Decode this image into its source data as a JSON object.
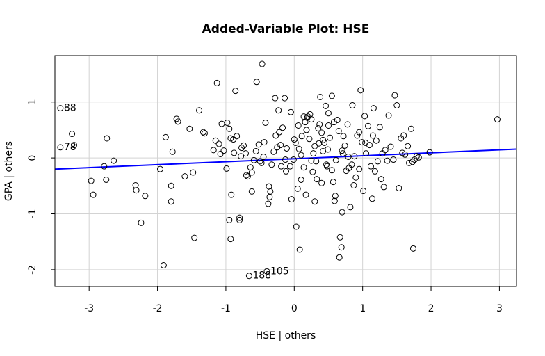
{
  "chart_data": {
    "type": "scatter",
    "title": "Added-Variable Plot: HSE",
    "xlabel": "HSE | others",
    "ylabel": "GPA | others",
    "xlim": [
      -3.5,
      3.25
    ],
    "ylim": [
      -2.3,
      1.83
    ],
    "xticks": [
      "-3",
      "-2",
      "-1",
      "0",
      "1",
      "2",
      "3"
    ],
    "yticks": [
      "-2",
      "-1",
      "0",
      "1"
    ],
    "grid": true,
    "colors": {
      "line": "#0000ff",
      "points": "#000000",
      "grid": "#d3d3d3"
    },
    "regression_line": {
      "intercept": -0.015,
      "slope": 0.053
    },
    "labeled_points": [
      {
        "x": -3.42,
        "y": 0.89,
        "label": "88"
      },
      {
        "x": -3.42,
        "y": 0.19,
        "label": "78"
      },
      {
        "x": -0.66,
        "y": -2.11,
        "label": "188"
      },
      {
        "x": -0.4,
        "y": -2.03,
        "label": "105"
      }
    ],
    "points": [
      [
        -3.25,
        0.43
      ],
      [
        -3.22,
        0.23
      ],
      [
        -2.97,
        -0.41
      ],
      [
        -2.94,
        -0.66
      ],
      [
        -2.78,
        -0.15
      ],
      [
        -2.64,
        -0.05
      ],
      [
        -2.74,
        0.35
      ],
      [
        -2.75,
        -0.39
      ],
      [
        -2.32,
        -0.49
      ],
      [
        -2.31,
        -0.58
      ],
      [
        -2.24,
        -1.16
      ],
      [
        -2.18,
        -0.68
      ],
      [
        -1.96,
        -0.2
      ],
      [
        -1.91,
        -1.92
      ],
      [
        -1.88,
        0.37
      ],
      [
        -1.8,
        -0.5
      ],
      [
        -1.8,
        -0.78
      ],
      [
        -1.78,
        0.11
      ],
      [
        -1.72,
        0.7
      ],
      [
        -1.7,
        0.65
      ],
      [
        -1.6,
        -0.33
      ],
      [
        -1.53,
        0.52
      ],
      [
        -1.48,
        -0.26
      ],
      [
        -1.46,
        -1.43
      ],
      [
        -1.39,
        0.85
      ],
      [
        -1.33,
        0.46
      ],
      [
        -1.31,
        0.44
      ],
      [
        -1.18,
        0.14
      ],
      [
        -1.15,
        0.31
      ],
      [
        -1.13,
        1.34
      ],
      [
        -1.1,
        0.25
      ],
      [
        -1.08,
        0.07
      ],
      [
        -1.06,
        0.61
      ],
      [
        -1.03,
        0.13
      ],
      [
        -0.99,
        -0.19
      ],
      [
        -0.98,
        0.63
      ],
      [
        -0.95,
        0.52
      ],
      [
        -0.93,
        0.35
      ],
      [
        -0.92,
        -0.66
      ],
      [
        -0.95,
        -1.11
      ],
      [
        -0.93,
        -1.45
      ],
      [
        -0.89,
        0.33
      ],
      [
        -0.88,
        0.09
      ],
      [
        -0.86,
        1.2
      ],
      [
        -0.84,
        0.39
      ],
      [
        -0.8,
        -1.07
      ],
      [
        -0.8,
        -1.11
      ],
      [
        -0.78,
        0.03
      ],
      [
        -0.77,
        0.18
      ],
      [
        -0.74,
        0.22
      ],
      [
        -0.71,
        0.08
      ],
      [
        -0.7,
        -0.31
      ],
      [
        -0.68,
        -0.33
      ],
      [
        -0.64,
        -0.17
      ],
      [
        -0.62,
        -0.26
      ],
      [
        -0.59,
        -0.04
      ],
      [
        -0.56,
        0.12
      ],
      [
        -0.55,
        1.36
      ],
      [
        -0.52,
        0.24
      ],
      [
        -0.5,
        -0.06
      ],
      [
        -0.47,
        1.68
      ],
      [
        -0.45,
        0.02
      ],
      [
        -0.44,
        0.28
      ],
      [
        -0.42,
        0.63
      ],
      [
        -0.38,
        -0.82
      ],
      [
        -0.37,
        -0.51
      ],
      [
        -0.36,
        -0.7
      ],
      [
        -0.35,
        -0.6
      ],
      [
        -0.33,
        -0.12
      ],
      [
        -0.3,
        0.11
      ],
      [
        -0.28,
        1.07
      ],
      [
        -0.25,
        0.19
      ],
      [
        -0.23,
        0.85
      ],
      [
        -0.2,
        0.23
      ],
      [
        -0.19,
        -0.15
      ],
      [
        -0.17,
        0.54
      ],
      [
        -0.14,
        1.07
      ],
      [
        -0.13,
        -0.03
      ],
      [
        -0.11,
        0.17
      ],
      [
        -0.06,
        -0.15
      ],
      [
        -0.04,
        -0.74
      ],
      [
        -0.01,
        -0.03
      ],
      [
        0.0,
        0.33
      ],
      [
        0.02,
        0.27
      ],
      [
        0.03,
        -1.23
      ],
      [
        0.05,
        -0.55
      ],
      [
        0.06,
        0.58
      ],
      [
        0.08,
        -1.64
      ],
      [
        0.1,
        0.05
      ],
      [
        0.11,
        0.39
      ],
      [
        0.14,
        -0.17
      ],
      [
        0.16,
        0.64
      ],
      [
        0.17,
        -0.66
      ],
      [
        0.19,
        0.72
      ],
      [
        0.2,
        0.74
      ],
      [
        0.22,
        0.34
      ],
      [
        0.23,
        0.78
      ],
      [
        0.25,
        0.69
      ],
      [
        0.27,
        -0.25
      ],
      [
        0.28,
        0.08
      ],
      [
        0.3,
        0.21
      ],
      [
        0.32,
        -0.06
      ],
      [
        0.33,
        -0.38
      ],
      [
        0.35,
        0.53
      ],
      [
        0.37,
        0.6
      ],
      [
        0.38,
        1.09
      ],
      [
        0.4,
        -0.45
      ],
      [
        0.42,
        0.32
      ],
      [
        0.44,
        0.27
      ],
      [
        0.46,
        0.93
      ],
      [
        0.47,
        -0.12
      ],
      [
        0.49,
        0.15
      ],
      [
        0.5,
        0.58
      ],
      [
        0.52,
        0.36
      ],
      [
        0.55,
        -0.22
      ],
      [
        0.57,
        -0.43
      ],
      [
        0.59,
        -0.77
      ],
      [
        0.61,
        -0.04
      ],
      [
        0.63,
        0.68
      ],
      [
        0.65,
        0.48
      ],
      [
        0.67,
        -1.42
      ],
      [
        0.69,
        -1.6
      ],
      [
        0.7,
        -0.97
      ],
      [
        0.72,
        0.39
      ],
      [
        0.74,
        0.22
      ],
      [
        0.76,
        -0.23
      ],
      [
        0.78,
        0.6
      ],
      [
        0.8,
        -0.18
      ],
      [
        0.82,
        -0.88
      ],
      [
        0.85,
        0.94
      ],
      [
        0.87,
        -0.49
      ],
      [
        0.88,
        0.03
      ],
      [
        0.9,
        -0.35
      ],
      [
        0.92,
        0.4
      ],
      [
        0.95,
        -0.2
      ],
      [
        0.97,
        1.21
      ],
      [
        0.99,
        0.28
      ],
      [
        1.01,
        -0.59
      ],
      [
        1.03,
        0.75
      ],
      [
        1.05,
        0.08
      ],
      [
        1.08,
        0.57
      ],
      [
        1.1,
        0.23
      ],
      [
        1.12,
        -0.15
      ],
      [
        1.14,
        -0.73
      ],
      [
        1.16,
        0.89
      ],
      [
        1.18,
        -0.24
      ],
      [
        1.2,
        0.31
      ],
      [
        1.22,
        -0.06
      ],
      [
        1.25,
        0.55
      ],
      [
        1.27,
        -0.38
      ],
      [
        1.29,
        0.08
      ],
      [
        1.31,
        -0.52
      ],
      [
        1.33,
        0.14
      ],
      [
        1.36,
        -0.05
      ],
      [
        1.38,
        0.76
      ],
      [
        1.41,
        0.2
      ],
      [
        1.45,
        -0.03
      ],
      [
        1.47,
        1.12
      ],
      [
        1.5,
        0.94
      ],
      [
        1.53,
        -0.54
      ],
      [
        1.56,
        0.35
      ],
      [
        1.58,
        0.09
      ],
      [
        1.6,
        0.4
      ],
      [
        1.62,
        0.06
      ],
      [
        1.66,
        0.21
      ],
      [
        1.68,
        -0.09
      ],
      [
        1.71,
        0.52
      ],
      [
        1.73,
        -0.07
      ],
      [
        1.74,
        -1.62
      ],
      [
        1.76,
        -0.03
      ],
      [
        1.79,
        0.03
      ],
      [
        1.82,
        0.01
      ],
      [
        1.98,
        0.1
      ],
      [
        2.97,
        0.69
      ],
      [
        0.42,
        0.12
      ],
      [
        0.55,
        1.11
      ],
      [
        0.6,
        -0.68
      ],
      [
        0.3,
        -0.78
      ],
      [
        0.18,
        0.5
      ],
      [
        0.1,
        -0.39
      ],
      [
        -0.22,
        0.46
      ],
      [
        -0.05,
        0.82
      ],
      [
        0.25,
        -0.05
      ],
      [
        0.36,
        0.26
      ],
      [
        0.48,
        -0.15
      ],
      [
        0.58,
        0.64
      ],
      [
        0.66,
        -1.78
      ],
      [
        0.71,
        0.08
      ],
      [
        0.84,
        -0.12
      ],
      [
        0.95,
        0.46
      ],
      [
        1.04,
        0.27
      ],
      [
        1.15,
        0.4
      ],
      [
        -0.62,
        -0.6
      ],
      [
        -0.48,
        -0.09
      ],
      [
        -0.27,
        0.4
      ],
      [
        -0.12,
        -0.24
      ],
      [
        0.07,
        0.16
      ],
      [
        0.14,
        0.74
      ],
      [
        0.4,
        0.45
      ],
      [
        0.5,
        0.8
      ],
      [
        0.7,
        0.13
      ],
      [
        0.79,
        0.02
      ]
    ]
  }
}
